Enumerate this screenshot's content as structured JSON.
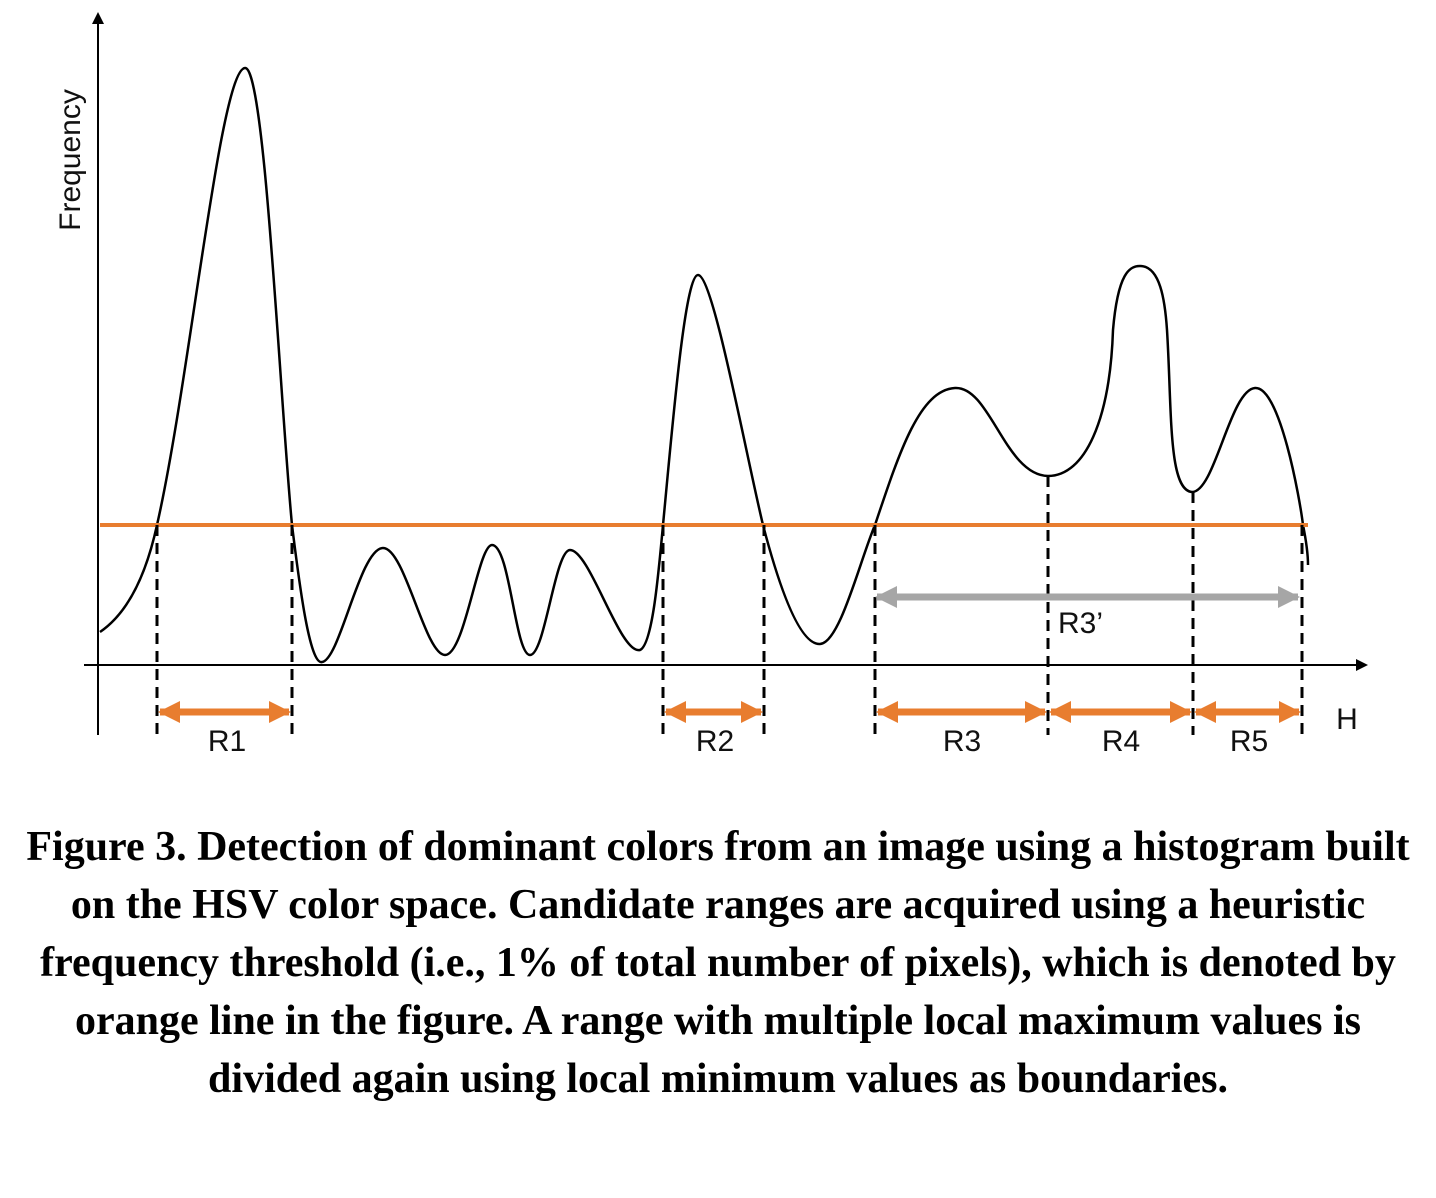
{
  "axes": {
    "y_label": "Frequency",
    "x_label": "H"
  },
  "threshold_color": "#e87d2f",
  "range_color": "#e87d2f",
  "merged_range_color": "#a6a6a6",
  "ranges": [
    {
      "label": "R1"
    },
    {
      "label": "R2"
    },
    {
      "label": "R3"
    },
    {
      "label": "R4"
    },
    {
      "label": "R5"
    }
  ],
  "merged_range": {
    "label": "R3’"
  },
  "caption": "Figure 3. Detection of dominant colors from an image using a histogram built on the HSV color space. Candidate ranges are acquired using a heuristic frequency threshold (i.e., 1% of total number of pixels), which is denoted by orange line in the figure. A range with multiple local maximum values is divided again using local minimum values as boundaries."
}
